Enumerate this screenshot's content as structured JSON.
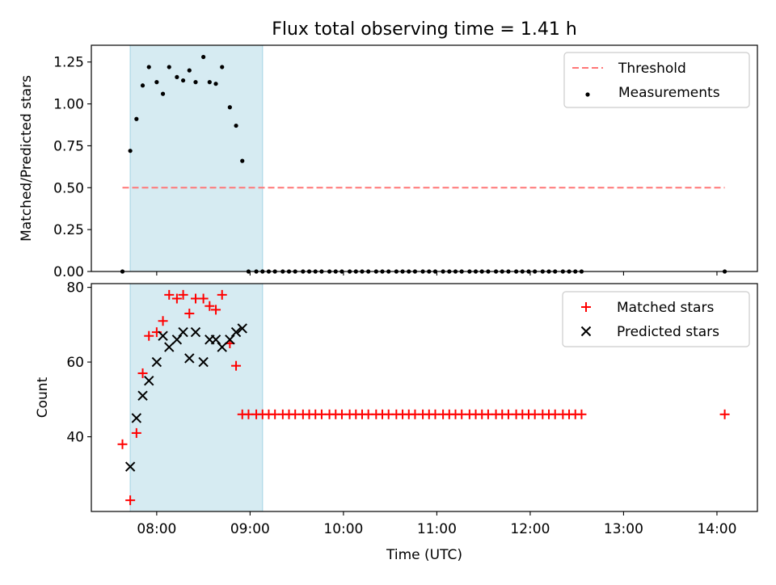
{
  "chart_data": [
    {
      "type": "scatter",
      "title": "Flux total observing time = 1.41 h",
      "ylabel": "Matched/Predicted stars",
      "xlabel": "",
      "ylim": [
        0,
        1.35
      ],
      "xlim": [
        "07:18",
        "14:26"
      ],
      "yticks": [
        0.0,
        0.25,
        0.5,
        0.75,
        1.0,
        1.25
      ],
      "ytick_labels": [
        "0.00",
        "0.25",
        "0.50",
        "0.75",
        "1.00",
        "1.25"
      ],
      "xticks": [
        "08:00",
        "09:00",
        "10:00",
        "11:00",
        "12:00",
        "13:00",
        "14:00"
      ],
      "shaded_span": [
        "07:43",
        "09:08"
      ],
      "legend": {
        "position": "top-right",
        "entries": [
          "Threshold",
          "Measurements"
        ]
      },
      "threshold": {
        "name": "Threshold",
        "y": 0.5,
        "x_start": "07:38",
        "x_end": "14:05",
        "color": "#ff7777"
      },
      "series": [
        {
          "name": "Measurements",
          "color": "#000000",
          "points": [
            [
              "07:38",
              0.0
            ],
            [
              "07:43",
              0.72
            ],
            [
              "07:47",
              0.91
            ],
            [
              "07:51",
              1.11
            ],
            [
              "07:55",
              1.22
            ],
            [
              "08:00",
              1.13
            ],
            [
              "08:04",
              1.06
            ],
            [
              "08:08",
              1.22
            ],
            [
              "08:13",
              1.16
            ],
            [
              "08:17",
              1.14
            ],
            [
              "08:21",
              1.2
            ],
            [
              "08:25",
              1.13
            ],
            [
              "08:30",
              1.28
            ],
            [
              "08:34",
              1.13
            ],
            [
              "08:38",
              1.12
            ],
            [
              "08:42",
              1.22
            ],
            [
              "08:47",
              0.98
            ],
            [
              "08:51",
              0.87
            ],
            [
              "08:55",
              0.66
            ],
            [
              "08:59",
              0.0
            ],
            [
              "09:04",
              0.0
            ],
            [
              "09:08",
              0.0
            ],
            [
              "09:12",
              0.0
            ],
            [
              "09:16",
              0.0
            ],
            [
              "09:21",
              0.0
            ],
            [
              "09:25",
              0.0
            ],
            [
              "09:29",
              0.0
            ],
            [
              "09:34",
              0.0
            ],
            [
              "09:38",
              0.0
            ],
            [
              "09:42",
              0.0
            ],
            [
              "09:46",
              0.0
            ],
            [
              "09:51",
              0.0
            ],
            [
              "09:55",
              0.0
            ],
            [
              "09:59",
              0.0
            ],
            [
              "10:04",
              0.0
            ],
            [
              "10:08",
              0.0
            ],
            [
              "10:12",
              0.0
            ],
            [
              "10:16",
              0.0
            ],
            [
              "10:21",
              0.0
            ],
            [
              "10:25",
              0.0
            ],
            [
              "10:29",
              0.0
            ],
            [
              "10:34",
              0.0
            ],
            [
              "10:38",
              0.0
            ],
            [
              "10:42",
              0.0
            ],
            [
              "10:46",
              0.0
            ],
            [
              "10:51",
              0.0
            ],
            [
              "10:55",
              0.0
            ],
            [
              "10:59",
              0.0
            ],
            [
              "11:04",
              0.0
            ],
            [
              "11:08",
              0.0
            ],
            [
              "11:12",
              0.0
            ],
            [
              "11:16",
              0.0
            ],
            [
              "11:21",
              0.0
            ],
            [
              "11:25",
              0.0
            ],
            [
              "11:29",
              0.0
            ],
            [
              "11:33",
              0.0
            ],
            [
              "11:38",
              0.0
            ],
            [
              "11:42",
              0.0
            ],
            [
              "11:46",
              0.0
            ],
            [
              "11:51",
              0.0
            ],
            [
              "11:55",
              0.0
            ],
            [
              "11:59",
              0.0
            ],
            [
              "12:03",
              0.0
            ],
            [
              "12:08",
              0.0
            ],
            [
              "12:12",
              0.0
            ],
            [
              "12:16",
              0.0
            ],
            [
              "12:21",
              0.0
            ],
            [
              "12:25",
              0.0
            ],
            [
              "12:29",
              0.0
            ],
            [
              "12:33",
              0.0
            ],
            [
              "14:05",
              0.0
            ]
          ]
        }
      ]
    },
    {
      "type": "scatter",
      "title": "",
      "ylabel": "Count",
      "xlabel": "Time (UTC)",
      "ylim": [
        20,
        81
      ],
      "xlim": [
        "07:18",
        "14:26"
      ],
      "yticks": [
        40,
        60,
        80
      ],
      "ytick_labels": [
        "40",
        "60",
        "80"
      ],
      "xticks": [
        "08:00",
        "09:00",
        "10:00",
        "11:00",
        "12:00",
        "13:00",
        "14:00"
      ],
      "xtick_labels": [
        "08:00",
        "09:00",
        "10:00",
        "11:00",
        "12:00",
        "13:00",
        "14:00"
      ],
      "shaded_span": [
        "07:43",
        "09:08"
      ],
      "legend": {
        "position": "top-right",
        "entries": [
          "Matched stars",
          "Predicted stars"
        ]
      },
      "series": [
        {
          "name": "Matched stars",
          "marker": "plus",
          "color": "#ff0000",
          "points": [
            [
              "07:38",
              38
            ],
            [
              "07:43",
              23
            ],
            [
              "07:47",
              41
            ],
            [
              "07:51",
              57
            ],
            [
              "07:55",
              67
            ],
            [
              "08:00",
              68
            ],
            [
              "08:04",
              71
            ],
            [
              "08:08",
              78
            ],
            [
              "08:13",
              77
            ],
            [
              "08:17",
              78
            ],
            [
              "08:21",
              73
            ],
            [
              "08:25",
              77
            ],
            [
              "08:30",
              77
            ],
            [
              "08:34",
              75
            ],
            [
              "08:38",
              74
            ],
            [
              "08:42",
              78
            ],
            [
              "08:47",
              65
            ],
            [
              "08:51",
              59
            ],
            [
              "08:55",
              46
            ],
            [
              "08:59",
              46
            ],
            [
              "09:04",
              46
            ],
            [
              "09:08",
              46
            ],
            [
              "09:12",
              46
            ],
            [
              "09:16",
              46
            ],
            [
              "09:21",
              46
            ],
            [
              "09:25",
              46
            ],
            [
              "09:29",
              46
            ],
            [
              "09:34",
              46
            ],
            [
              "09:38",
              46
            ],
            [
              "09:42",
              46
            ],
            [
              "09:46",
              46
            ],
            [
              "09:51",
              46
            ],
            [
              "09:55",
              46
            ],
            [
              "09:59",
              46
            ],
            [
              "10:04",
              46
            ],
            [
              "10:08",
              46
            ],
            [
              "10:12",
              46
            ],
            [
              "10:16",
              46
            ],
            [
              "10:21",
              46
            ],
            [
              "10:25",
              46
            ],
            [
              "10:29",
              46
            ],
            [
              "10:34",
              46
            ],
            [
              "10:38",
              46
            ],
            [
              "10:42",
              46
            ],
            [
              "10:46",
              46
            ],
            [
              "10:51",
              46
            ],
            [
              "10:55",
              46
            ],
            [
              "10:59",
              46
            ],
            [
              "11:04",
              46
            ],
            [
              "11:08",
              46
            ],
            [
              "11:12",
              46
            ],
            [
              "11:16",
              46
            ],
            [
              "11:21",
              46
            ],
            [
              "11:25",
              46
            ],
            [
              "11:29",
              46
            ],
            [
              "11:33",
              46
            ],
            [
              "11:38",
              46
            ],
            [
              "11:42",
              46
            ],
            [
              "11:46",
              46
            ],
            [
              "11:51",
              46
            ],
            [
              "11:55",
              46
            ],
            [
              "11:59",
              46
            ],
            [
              "12:03",
              46
            ],
            [
              "12:08",
              46
            ],
            [
              "12:12",
              46
            ],
            [
              "12:16",
              46
            ],
            [
              "12:21",
              46
            ],
            [
              "12:25",
              46
            ],
            [
              "12:29",
              46
            ],
            [
              "12:33",
              46
            ],
            [
              "14:05",
              46
            ]
          ]
        },
        {
          "name": "Predicted stars",
          "marker": "x",
          "color": "#000000",
          "points": [
            [
              "07:43",
              32
            ],
            [
              "07:47",
              45
            ],
            [
              "07:51",
              51
            ],
            [
              "07:55",
              55
            ],
            [
              "08:00",
              60
            ],
            [
              "08:04",
              67
            ],
            [
              "08:08",
              64
            ],
            [
              "08:13",
              66
            ],
            [
              "08:17",
              68
            ],
            [
              "08:21",
              61
            ],
            [
              "08:25",
              68
            ],
            [
              "08:30",
              60
            ],
            [
              "08:34",
              66
            ],
            [
              "08:38",
              66
            ],
            [
              "08:42",
              64
            ],
            [
              "08:47",
              66
            ],
            [
              "08:51",
              68
            ],
            [
              "08:55",
              69
            ]
          ]
        }
      ]
    }
  ]
}
